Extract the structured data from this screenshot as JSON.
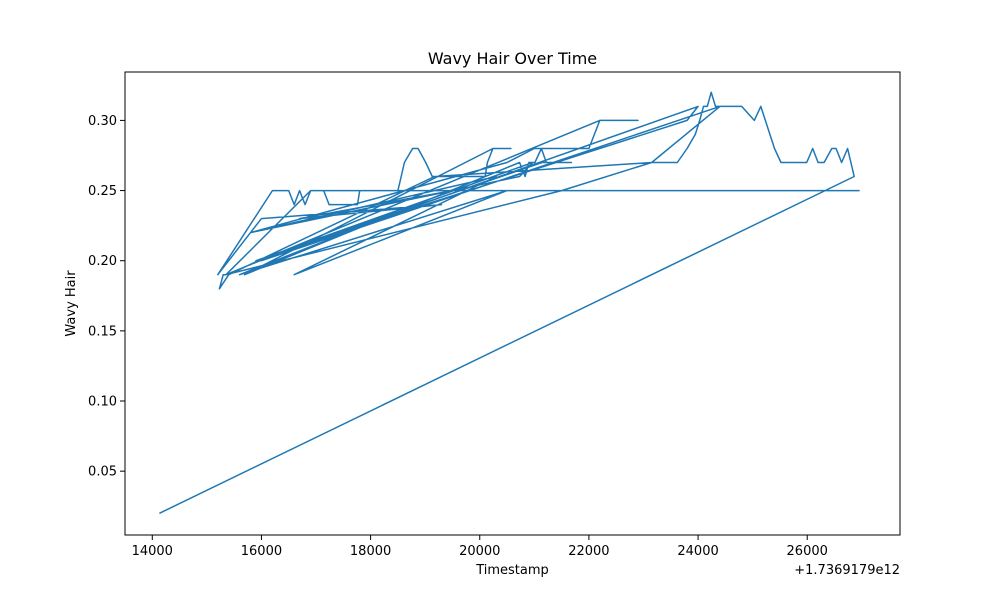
{
  "chart_data": {
    "type": "line",
    "title": "Wavy Hair Over Time",
    "xlabel": "Timestamp",
    "ylabel": "Wavy Hair",
    "x_offset_label": "+1.7369179e12",
    "xlim": [
      13500,
      27700
    ],
    "ylim": [
      0.0045,
      0.3345
    ],
    "x_ticks": [
      {
        "value": 14000,
        "label": "14000"
      },
      {
        "value": 16000,
        "label": "16000"
      },
      {
        "value": 18000,
        "label": "18000"
      },
      {
        "value": 20000,
        "label": "20000"
      },
      {
        "value": 22000,
        "label": "22000"
      },
      {
        "value": 24000,
        "label": "24000"
      },
      {
        "value": 26000,
        "label": "26000"
      }
    ],
    "y_ticks": [
      {
        "value": 0.05,
        "label": "0.05"
      },
      {
        "value": 0.1,
        "label": "0.10"
      },
      {
        "value": 0.15,
        "label": "0.15"
      },
      {
        "value": 0.2,
        "label": "0.20"
      },
      {
        "value": 0.25,
        "label": "0.25"
      },
      {
        "value": 0.3,
        "label": "0.30"
      }
    ],
    "grid": false,
    "series": [
      {
        "color": "#1f77b4",
        "x": [
          14130,
          26860,
          26740,
          26630,
          26530,
          26450,
          26310,
          26200,
          26100,
          25990,
          25870,
          25600,
          25520,
          25400,
          25150,
          25030,
          24800,
          24450,
          24400,
          24320,
          24240,
          24170,
          24100,
          24030,
          23950,
          23800,
          23620,
          23150,
          19170,
          15400,
          15230,
          15300,
          15350,
          16900,
          16920,
          16980,
          17070,
          17140,
          17240,
          17320,
          17470,
          17760,
          17800,
          18500,
          18560,
          18620,
          18770,
          18870,
          19010,
          19130,
          19250,
          19430,
          19550,
          20050,
          20100,
          20140,
          20240,
          20570,
          20240,
          15690,
          20730,
          20830,
          20900,
          21010,
          21130,
          21220,
          21300,
          21680,
          21140,
          15900,
          20970,
          20730,
          15800,
          20500,
          21000,
          22000,
          22200,
          22900,
          22200,
          15350,
          21500,
          23150,
          24400,
          16000,
          24000,
          23800,
          18200,
          15600,
          20500,
          16600,
          20300,
          15800,
          19500,
          16700,
          19300,
          16000,
          15200,
          16200,
          16400,
          16500,
          16600,
          16700,
          16800,
          16900,
          17100,
          17200,
          17400,
          17800,
          18100,
          18400,
          18600,
          18900,
          19200,
          19700,
          20300,
          20900,
          21600,
          22300,
          23100,
          23900,
          24700,
          25300,
          25800,
          26200,
          26700,
          26960
        ],
        "values": [
          0.02,
          0.26,
          0.28,
          0.27,
          0.28,
          0.28,
          0.27,
          0.27,
          0.28,
          0.27,
          0.27,
          0.27,
          0.27,
          0.28,
          0.31,
          0.3,
          0.31,
          0.31,
          0.31,
          0.31,
          0.32,
          0.31,
          0.31,
          0.3,
          0.29,
          0.28,
          0.27,
          0.27,
          0.26,
          0.19,
          0.18,
          0.19,
          0.19,
          0.25,
          0.25,
          0.25,
          0.25,
          0.25,
          0.24,
          0.24,
          0.24,
          0.24,
          0.25,
          0.25,
          0.26,
          0.27,
          0.28,
          0.28,
          0.27,
          0.26,
          0.26,
          0.26,
          0.26,
          0.26,
          0.26,
          0.27,
          0.28,
          0.28,
          0.28,
          0.19,
          0.27,
          0.26,
          0.27,
          0.27,
          0.28,
          0.27,
          0.27,
          0.27,
          0.27,
          0.2,
          0.27,
          0.26,
          0.22,
          0.27,
          0.28,
          0.28,
          0.3,
          0.3,
          0.3,
          0.19,
          0.25,
          0.27,
          0.31,
          0.2,
          0.31,
          0.3,
          0.23,
          0.19,
          0.25,
          0.19,
          0.26,
          0.22,
          0.25,
          0.23,
          0.24,
          0.23,
          0.19,
          0.25,
          0.25,
          0.25,
          0.24,
          0.25,
          0.24,
          0.25,
          0.25,
          0.25,
          0.25,
          0.25,
          0.25,
          0.25,
          0.25,
          0.25,
          0.25,
          0.25,
          0.25,
          0.25,
          0.25,
          0.25,
          0.25,
          0.25,
          0.25,
          0.25,
          0.25,
          0.25,
          0.25,
          0.25
        ]
      }
    ]
  }
}
